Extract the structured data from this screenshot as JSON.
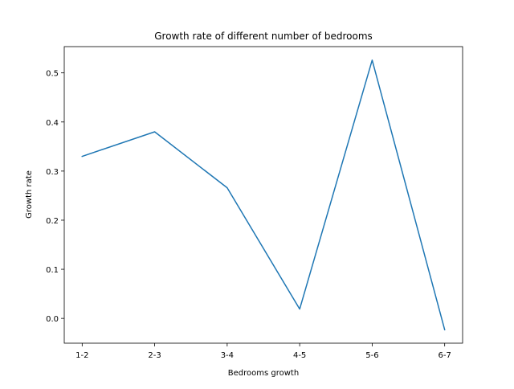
{
  "chart_data": {
    "type": "line",
    "title": "Growth rate of different number of bedrooms",
    "xlabel": "Bedrooms growth",
    "ylabel": "Growth rate",
    "categories": [
      "1-2",
      "2-3",
      "3-4",
      "4-5",
      "5-6",
      "6-7"
    ],
    "series": [
      {
        "values": [
          0.33,
          0.38,
          0.266,
          0.019,
          0.526,
          -0.023
        ],
        "color": "#1f77b4"
      }
    ],
    "yticks": [
      0.0,
      0.1,
      0.2,
      0.3,
      0.4,
      0.5
    ],
    "ytick_labels": [
      "0.0",
      "0.1",
      "0.2",
      "0.3",
      "0.4",
      "0.5"
    ],
    "ylim": [
      -0.0505,
      0.5535
    ],
    "grid": false,
    "legend": false
  }
}
